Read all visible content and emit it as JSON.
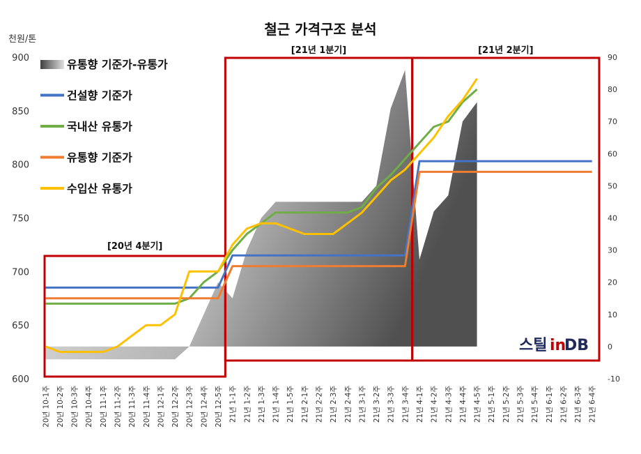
{
  "chart_data": {
    "type": "line",
    "title": "철근 가격구조 분석",
    "ylabel": "천원/톤",
    "ylim": [
      600,
      900
    ],
    "y_ticks": [
      600,
      650,
      700,
      750,
      800,
      850,
      900
    ],
    "y2lim": [
      -10,
      90
    ],
    "y2_ticks": [
      -10,
      0,
      10,
      20,
      30,
      40,
      50,
      60,
      70,
      80,
      90
    ],
    "grid": false,
    "legend_position": "top-left",
    "categories": [
      "20년 10-1주",
      "20년 10-2주",
      "20년 10-3주",
      "20년 10-4주",
      "20년 11-1주",
      "20년 11-2주",
      "20년 11-3주",
      "20년 11-4주",
      "20년 12-1주",
      "20년 12-2주",
      "20년 12-3주",
      "20년 12-4주",
      "20년 12-5주",
      "21년 1-1주",
      "21년 1-2주",
      "21년 1-3주",
      "21년 1-4주",
      "21년 1-5주",
      "21년 2-1주",
      "21년 2-2주",
      "21년 2-3주",
      "21년 2-4주",
      "21년 3-1주",
      "21년 3-2주",
      "21년 3-3주",
      "21년 3-4주",
      "21년 4-1주",
      "21년 4-2주",
      "21년 4-3주",
      "21년 4-4주",
      "21년 4-5주",
      "21년 5-1주",
      "21년 5-2주",
      "21년 5-3주",
      "21년 5-4주",
      "21년 6-1주",
      "21년 6-2주",
      "21년 6-3주",
      "21년 6-4주"
    ],
    "series": [
      {
        "name": "유통향 기준가-유통가",
        "type": "area",
        "axis": "right",
        "color": "#808080",
        "values": [
          -4,
          -4,
          -4,
          -4,
          -4,
          -4,
          -4,
          -4,
          -4,
          -4,
          0,
          10,
          20,
          15,
          30,
          40,
          45,
          45,
          45,
          45,
          45,
          45,
          45,
          50,
          74,
          86,
          27,
          42,
          47,
          70,
          76,
          null,
          null,
          null,
          null,
          null,
          null,
          null,
          null
        ]
      },
      {
        "name": "건설향 기준가",
        "type": "line",
        "axis": "left",
        "color": "#4472c4",
        "values": [
          685,
          685,
          685,
          685,
          685,
          685,
          685,
          685,
          685,
          685,
          685,
          685,
          685,
          715,
          715,
          715,
          715,
          715,
          715,
          715,
          715,
          715,
          715,
          715,
          715,
          715,
          803,
          803,
          803,
          803,
          803,
          803,
          803,
          803,
          803,
          803,
          803,
          803,
          803
        ]
      },
      {
        "name": "국내산 유통가",
        "type": "line",
        "axis": "left",
        "color": "#70ad47",
        "values": [
          670,
          670,
          670,
          670,
          670,
          670,
          670,
          670,
          670,
          670,
          675,
          690,
          700,
          720,
          735,
          745,
          755,
          755,
          755,
          755,
          755,
          755,
          760,
          778,
          790,
          805,
          820,
          835,
          840,
          858,
          870,
          null,
          null,
          null,
          null,
          null,
          null,
          null,
          null
        ]
      },
      {
        "name": "유통향 기준가",
        "type": "line",
        "axis": "left",
        "color": "#ed7d31",
        "values": [
          675,
          675,
          675,
          675,
          675,
          675,
          675,
          675,
          675,
          675,
          675,
          675,
          675,
          705,
          705,
          705,
          705,
          705,
          705,
          705,
          705,
          705,
          705,
          705,
          705,
          705,
          793,
          793,
          793,
          793,
          793,
          793,
          793,
          793,
          793,
          793,
          793,
          793,
          793
        ]
      },
      {
        "name": "수입산 유통가",
        "type": "line",
        "axis": "left",
        "color": "#ffc000",
        "values": [
          630,
          625,
          625,
          625,
          625,
          630,
          640,
          650,
          650,
          660,
          700,
          700,
          700,
          725,
          740,
          745,
          745,
          740,
          735,
          735,
          735,
          745,
          755,
          770,
          785,
          795,
          810,
          825,
          845,
          860,
          880,
          null,
          null,
          null,
          null,
          null,
          null,
          null,
          null
        ]
      }
    ],
    "annotations": [
      {
        "label": "[20년 4분기]",
        "from": "20년 10-1주",
        "to": "20년 12-5주"
      },
      {
        "label": "[21년 1분기]",
        "from": "21년 1-1주",
        "to": "21년 3-4주"
      },
      {
        "label": "[21년 2분기]",
        "from": "21년 4-1주",
        "to": "21년 6-4주"
      }
    ],
    "period_box_color": "#c00000"
  },
  "logo": {
    "part_a": "스틸",
    "part_b": "in",
    "part_c": "DB"
  }
}
